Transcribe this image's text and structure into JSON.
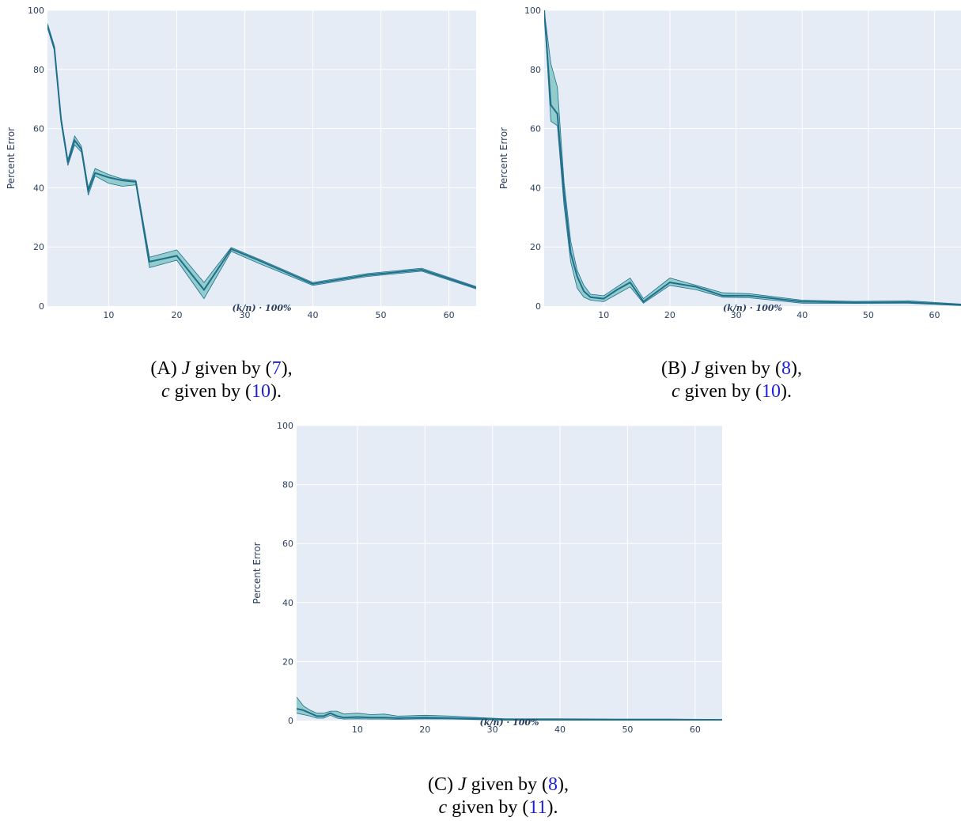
{
  "panels": [
    {
      "caption": {
        "letter": "A",
        "j_ref": "7",
        "c_ref": "10"
      },
      "chart_data": {
        "type": "area",
        "xlabel": "(k/n) · 100%",
        "ylabel": "Percent Error",
        "xlim": [
          1,
          64
        ],
        "ylim": [
          0,
          100
        ],
        "xticks": [
          10,
          20,
          30,
          40,
          50,
          60
        ],
        "yticks": [
          0,
          20,
          40,
          60,
          80,
          100
        ],
        "x": [
          1,
          2,
          3,
          4,
          5,
          6,
          7,
          8,
          10,
          12,
          14,
          16,
          20,
          24,
          28,
          32,
          40,
          48,
          56,
          64
        ],
        "mean": [
          95,
          87.5,
          63,
          48.5,
          56,
          53,
          39,
          45,
          43.5,
          42.5,
          42,
          15,
          17,
          5.5,
          19.3,
          15.5,
          7.5,
          10.5,
          12.3,
          6.2
        ],
        "upper": [
          95.5,
          88,
          64,
          49.5,
          57.5,
          54,
          40,
          46.5,
          44.5,
          43,
          42.5,
          16.5,
          19,
          8,
          19.8,
          16,
          8,
          11,
          12.8,
          6.6
        ],
        "lower": [
          94,
          86.5,
          62,
          47.5,
          54.5,
          52,
          37.5,
          44,
          41.5,
          40.5,
          41,
          13,
          15.5,
          2.5,
          18.5,
          14.5,
          7,
          10,
          11.8,
          5.8
        ],
        "grid": true
      }
    },
    {
      "caption": {
        "letter": "B",
        "j_ref": "8",
        "c_ref": "10"
      },
      "chart_data": {
        "type": "area",
        "xlabel": "(k/n) · 100%",
        "ylabel": "Percent Error",
        "xlim": [
          1,
          64
        ],
        "ylim": [
          0,
          100
        ],
        "xticks": [
          10,
          20,
          30,
          40,
          50,
          60
        ],
        "yticks": [
          0,
          20,
          40,
          60,
          80,
          100
        ],
        "x": [
          1,
          2,
          3,
          4,
          5,
          6,
          7,
          8,
          10,
          12,
          14,
          16,
          20,
          24,
          28,
          32,
          40,
          48,
          56,
          64
        ],
        "mean": [
          100,
          68,
          65,
          38,
          18,
          10,
          5,
          3,
          2.5,
          5.5,
          8,
          1.5,
          8,
          6.5,
          3.5,
          3.5,
          1.5,
          1.2,
          1.3,
          0.4
        ],
        "upper": [
          100,
          82,
          74,
          42,
          22,
          12,
          7,
          4,
          3.5,
          6.5,
          9.5,
          2.5,
          9.5,
          7,
          4.5,
          4.2,
          2,
          1.6,
          1.8,
          0.7
        ],
        "lower": [
          100,
          62.5,
          61,
          34,
          15,
          6,
          3,
          2,
          1.5,
          4,
          6.5,
          1,
          7,
          5.5,
          3,
          2.8,
          1,
          0.9,
          1,
          0.2
        ],
        "grid": true
      }
    },
    {
      "caption": {
        "letter": "C",
        "j_ref": "8",
        "c_ref": "11"
      },
      "chart_data": {
        "type": "area",
        "xlabel": "(k/n) · 100%",
        "ylabel": "Percent Error",
        "xlim": [
          1,
          64
        ],
        "ylim": [
          0,
          100
        ],
        "xticks": [
          10,
          20,
          30,
          40,
          50,
          60
        ],
        "yticks": [
          0,
          20,
          40,
          60,
          80,
          100
        ],
        "x": [
          1,
          2,
          3,
          4,
          5,
          6,
          7,
          8,
          10,
          12,
          14,
          16,
          20,
          24,
          28,
          32,
          40,
          48,
          56,
          64
        ],
        "mean": [
          4,
          3.5,
          2.5,
          1.5,
          1.5,
          2.5,
          1.5,
          1,
          1.2,
          1,
          1,
          0.8,
          1,
          0.8,
          0.6,
          0.3,
          0.3,
          0.3,
          0.3,
          0.2
        ],
        "upper": [
          8,
          5,
          3.5,
          2.5,
          2.5,
          3.2,
          3.2,
          2.2,
          2.5,
          2,
          2.2,
          1.5,
          1.8,
          1.5,
          1,
          0.6,
          0.6,
          0.5,
          0.5,
          0.4
        ],
        "lower": [
          2.5,
          2,
          1.5,
          0.8,
          0.8,
          1.8,
          0.8,
          0.5,
          0.6,
          0.5,
          0.5,
          0.4,
          0.6,
          0.5,
          0.3,
          0.1,
          0.1,
          0.1,
          0.1,
          0.1
        ],
        "grid": true
      }
    }
  ],
  "colors": {
    "plot_bg": "#e5ecf6",
    "grid": "#ffffff",
    "line": "#1f6f8b",
    "band": "#4fb3a9",
    "axis_text": "#2a3f5f"
  }
}
